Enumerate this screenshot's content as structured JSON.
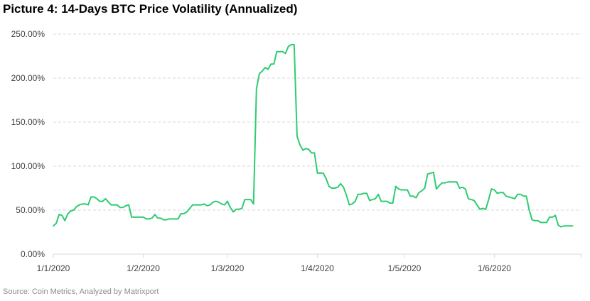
{
  "chart_data": {
    "type": "line",
    "title": "Picture 4: 14-Days BTC Price Volatility (Annualized)",
    "source": "Source: Coin Metrics, Analyzed by Matrixport",
    "xlabel": "",
    "ylabel": "",
    "ylim": [
      0,
      250
    ],
    "y_ticks": [
      0,
      50,
      100,
      150,
      200,
      250
    ],
    "y_tick_labels": [
      "0.00%",
      "50.00%",
      "100.00%",
      "150.00%",
      "200.00%",
      "250.00%"
    ],
    "x_ticks": [
      "2020-01-01",
      "2020-02-01",
      "2020-03-01",
      "2020-04-01",
      "2020-05-01",
      "2020-06-01"
    ],
    "x_tick_labels": [
      "1/1/2020",
      "1/2/2020",
      "1/3/2020",
      "1/4/2020",
      "1/5/2020",
      "1/6/2020"
    ],
    "xlim": [
      "2020-01-01",
      "2020-07-01"
    ],
    "grid": "horizontal dashed",
    "line_color": "#2ecc71",
    "series": [
      {
        "points": [
          [
            "2020-01-01",
            32
          ],
          [
            "2020-01-02",
            35
          ],
          [
            "2020-01-03",
            45
          ],
          [
            "2020-01-04",
            44
          ],
          [
            "2020-01-05",
            38
          ],
          [
            "2020-01-06",
            46
          ],
          [
            "2020-01-07",
            49
          ],
          [
            "2020-01-08",
            50
          ],
          [
            "2020-01-09",
            54
          ],
          [
            "2020-01-10",
            56
          ],
          [
            "2020-01-11",
            57
          ],
          [
            "2020-01-12",
            57
          ],
          [
            "2020-01-13",
            56
          ],
          [
            "2020-01-14",
            65
          ],
          [
            "2020-01-15",
            65
          ],
          [
            "2020-01-16",
            63
          ],
          [
            "2020-01-17",
            60
          ],
          [
            "2020-01-18",
            60
          ],
          [
            "2020-01-19",
            63
          ],
          [
            "2020-01-20",
            59
          ],
          [
            "2020-01-21",
            56
          ],
          [
            "2020-01-22",
            56
          ],
          [
            "2020-01-23",
            56
          ],
          [
            "2020-01-24",
            53
          ],
          [
            "2020-01-25",
            53
          ],
          [
            "2020-01-26",
            55
          ],
          [
            "2020-01-27",
            56
          ],
          [
            "2020-01-28",
            42
          ],
          [
            "2020-01-29",
            42
          ],
          [
            "2020-01-30",
            42
          ],
          [
            "2020-01-31",
            42
          ],
          [
            "2020-02-01",
            42
          ],
          [
            "2020-02-02",
            40
          ],
          [
            "2020-02-03",
            40
          ],
          [
            "2020-02-04",
            41
          ],
          [
            "2020-02-05",
            45
          ],
          [
            "2020-02-06",
            41
          ],
          [
            "2020-02-07",
            41
          ],
          [
            "2020-02-08",
            39
          ],
          [
            "2020-02-09",
            39
          ],
          [
            "2020-02-10",
            40
          ],
          [
            "2020-02-11",
            40
          ],
          [
            "2020-02-12",
            40
          ],
          [
            "2020-02-13",
            40
          ],
          [
            "2020-02-14",
            46
          ],
          [
            "2020-02-15",
            46
          ],
          [
            "2020-02-16",
            48
          ],
          [
            "2020-02-17",
            52
          ],
          [
            "2020-02-18",
            56
          ],
          [
            "2020-02-19",
            56
          ],
          [
            "2020-02-20",
            56
          ],
          [
            "2020-02-21",
            56
          ],
          [
            "2020-02-22",
            57
          ],
          [
            "2020-02-23",
            55
          ],
          [
            "2020-02-24",
            56
          ],
          [
            "2020-02-25",
            59
          ],
          [
            "2020-02-26",
            60
          ],
          [
            "2020-02-27",
            59
          ],
          [
            "2020-02-28",
            57
          ],
          [
            "2020-02-29",
            56
          ],
          [
            "2020-03-01",
            60
          ],
          [
            "2020-03-02",
            53
          ],
          [
            "2020-03-03",
            48
          ],
          [
            "2020-03-04",
            51
          ],
          [
            "2020-03-05",
            51
          ],
          [
            "2020-03-06",
            52
          ],
          [
            "2020-03-07",
            62
          ],
          [
            "2020-03-08",
            62
          ],
          [
            "2020-03-09",
            62
          ],
          [
            "2020-03-10",
            57
          ],
          [
            "2020-03-11",
            188
          ],
          [
            "2020-03-12",
            205
          ],
          [
            "2020-03-13",
            208
          ],
          [
            "2020-03-14",
            212
          ],
          [
            "2020-03-15",
            210
          ],
          [
            "2020-03-16",
            216
          ],
          [
            "2020-03-17",
            216
          ],
          [
            "2020-03-18",
            230
          ],
          [
            "2020-03-19",
            230
          ],
          [
            "2020-03-20",
            230
          ],
          [
            "2020-03-21",
            228
          ],
          [
            "2020-03-22",
            236
          ],
          [
            "2020-03-23",
            238
          ],
          [
            "2020-03-24",
            238
          ],
          [
            "2020-03-25",
            134
          ],
          [
            "2020-03-26",
            124
          ],
          [
            "2020-03-27",
            118
          ],
          [
            "2020-03-28",
            120
          ],
          [
            "2020-03-29",
            119
          ],
          [
            "2020-03-30",
            115
          ],
          [
            "2020-03-31",
            115
          ],
          [
            "2020-04-01",
            92
          ],
          [
            "2020-04-02",
            92
          ],
          [
            "2020-04-03",
            92
          ],
          [
            "2020-04-04",
            86
          ],
          [
            "2020-04-05",
            77
          ],
          [
            "2020-04-06",
            75
          ],
          [
            "2020-04-07",
            75
          ],
          [
            "2020-04-08",
            76
          ],
          [
            "2020-04-09",
            80
          ],
          [
            "2020-04-10",
            76
          ],
          [
            "2020-04-11",
            67
          ],
          [
            "2020-04-12",
            56
          ],
          [
            "2020-04-13",
            57
          ],
          [
            "2020-04-14",
            60
          ],
          [
            "2020-04-15",
            68
          ],
          [
            "2020-04-16",
            68
          ],
          [
            "2020-04-17",
            69
          ],
          [
            "2020-04-18",
            69
          ],
          [
            "2020-04-19",
            61
          ],
          [
            "2020-04-20",
            62
          ],
          [
            "2020-04-21",
            63
          ],
          [
            "2020-04-22",
            68
          ],
          [
            "2020-04-23",
            60
          ],
          [
            "2020-04-24",
            60
          ],
          [
            "2020-04-25",
            60
          ],
          [
            "2020-04-26",
            58
          ],
          [
            "2020-04-27",
            58
          ],
          [
            "2020-04-28",
            77
          ],
          [
            "2020-04-29",
            74
          ],
          [
            "2020-04-30",
            73
          ],
          [
            "2020-05-01",
            73
          ],
          [
            "2020-05-02",
            73
          ],
          [
            "2020-05-03",
            66
          ],
          [
            "2020-05-04",
            66
          ],
          [
            "2020-05-05",
            64
          ],
          [
            "2020-05-06",
            70
          ],
          [
            "2020-05-07",
            72
          ],
          [
            "2020-05-08",
            75
          ],
          [
            "2020-05-09",
            91
          ],
          [
            "2020-05-10",
            92
          ],
          [
            "2020-05-11",
            93
          ],
          [
            "2020-05-12",
            74
          ],
          [
            "2020-05-13",
            78
          ],
          [
            "2020-05-14",
            81
          ],
          [
            "2020-05-15",
            81
          ],
          [
            "2020-05-16",
            82
          ],
          [
            "2020-05-17",
            82
          ],
          [
            "2020-05-18",
            82
          ],
          [
            "2020-05-19",
            82
          ],
          [
            "2020-05-20",
            75
          ],
          [
            "2020-05-21",
            76
          ],
          [
            "2020-05-22",
            74
          ],
          [
            "2020-05-23",
            63
          ],
          [
            "2020-05-24",
            62
          ],
          [
            "2020-05-25",
            61
          ],
          [
            "2020-05-26",
            56
          ],
          [
            "2020-05-27",
            51
          ],
          [
            "2020-05-28",
            52
          ],
          [
            "2020-05-29",
            51
          ],
          [
            "2020-05-30",
            62
          ],
          [
            "2020-05-31",
            74
          ],
          [
            "2020-06-01",
            73
          ],
          [
            "2020-06-02",
            69
          ],
          [
            "2020-06-03",
            70
          ],
          [
            "2020-06-04",
            70
          ],
          [
            "2020-06-05",
            66
          ],
          [
            "2020-06-06",
            65
          ],
          [
            "2020-06-07",
            64
          ],
          [
            "2020-06-08",
            63
          ],
          [
            "2020-06-09",
            68
          ],
          [
            "2020-06-10",
            68
          ],
          [
            "2020-06-11",
            66
          ],
          [
            "2020-06-12",
            66
          ],
          [
            "2020-06-13",
            50
          ],
          [
            "2020-06-14",
            39
          ],
          [
            "2020-06-15",
            38
          ],
          [
            "2020-06-16",
            38
          ],
          [
            "2020-06-17",
            36
          ],
          [
            "2020-06-18",
            36
          ],
          [
            "2020-06-19",
            36
          ],
          [
            "2020-06-20",
            42
          ],
          [
            "2020-06-21",
            42
          ],
          [
            "2020-06-22",
            44
          ],
          [
            "2020-06-23",
            33
          ],
          [
            "2020-06-24",
            31
          ],
          [
            "2020-06-25",
            32
          ],
          [
            "2020-06-26",
            32
          ],
          [
            "2020-06-27",
            32
          ],
          [
            "2020-06-28",
            32
          ]
        ]
      }
    ]
  }
}
